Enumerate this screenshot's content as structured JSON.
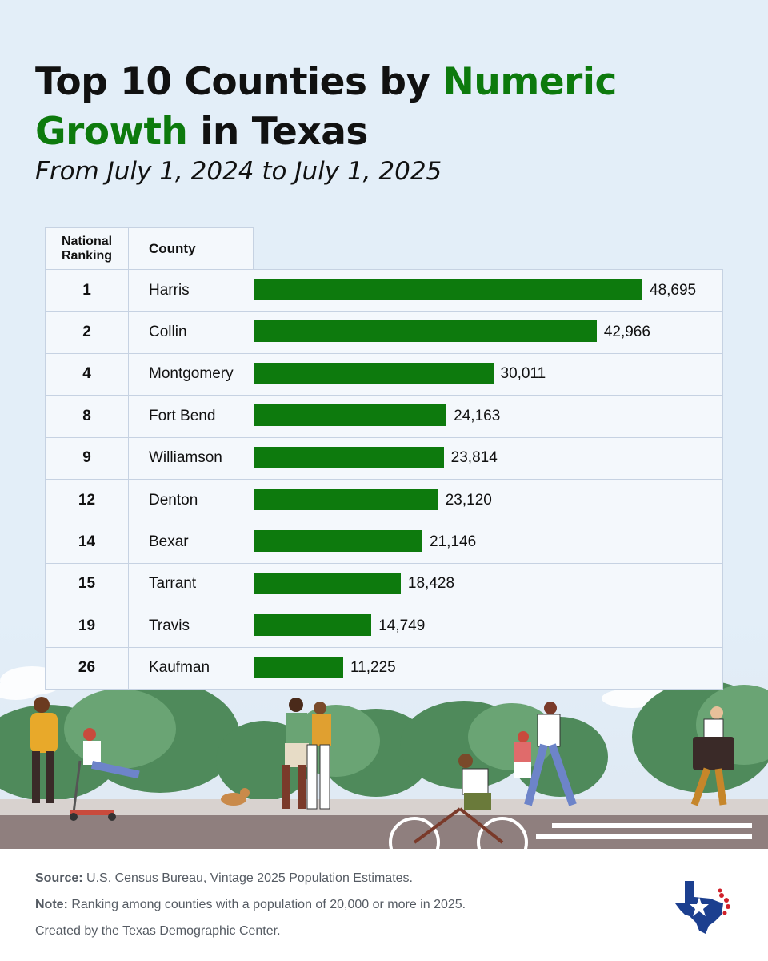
{
  "title": {
    "part1": "Top 10 Counties by ",
    "accent1": "Numeric",
    "accent2": "Growth",
    "part2": " in Texas"
  },
  "subtitle": "From July 1, 2024 to July 1, 2025",
  "colors": {
    "bar": "#0d7a0d",
    "background": "#e3eef8",
    "title_accent": "#0d7a0d"
  },
  "table": {
    "header_rank": "National Ranking",
    "header_county": "County"
  },
  "chart_data": {
    "type": "bar",
    "orientation": "horizontal",
    "xlim": [
      0,
      55000
    ],
    "rows": [
      {
        "rank": "1",
        "county": "Harris",
        "value": 48695,
        "label": "48,695"
      },
      {
        "rank": "2",
        "county": "Collin",
        "value": 42966,
        "label": "42,966"
      },
      {
        "rank": "4",
        "county": "Montgomery",
        "value": 30011,
        "label": "30,011"
      },
      {
        "rank": "8",
        "county": "Fort Bend",
        "value": 24163,
        "label": "24,163"
      },
      {
        "rank": "9",
        "county": "Williamson",
        "value": 23814,
        "label": "23,814"
      },
      {
        "rank": "12",
        "county": "Denton",
        "value": 23120,
        "label": "23,120"
      },
      {
        "rank": "14",
        "county": "Bexar",
        "value": 21146,
        "label": "21,146"
      },
      {
        "rank": "15",
        "county": "Tarrant",
        "value": 18428,
        "label": "18,428"
      },
      {
        "rank": "19",
        "county": "Travis",
        "value": 14749,
        "label": "14,749"
      },
      {
        "rank": "26",
        "county": "Kaufman",
        "value": 11225,
        "label": "11,225"
      }
    ]
  },
  "footer": {
    "source_label": "Source:",
    "source_text": " U.S. Census Bureau, Vintage 2025 Population Estimates.",
    "note_label": "Note:",
    "note_text": " Ranking among counties with a population of 20,000 or more in 2025.",
    "credit": "Created by the Texas Demographic Center."
  },
  "logo_icon": "texas-state-icon"
}
